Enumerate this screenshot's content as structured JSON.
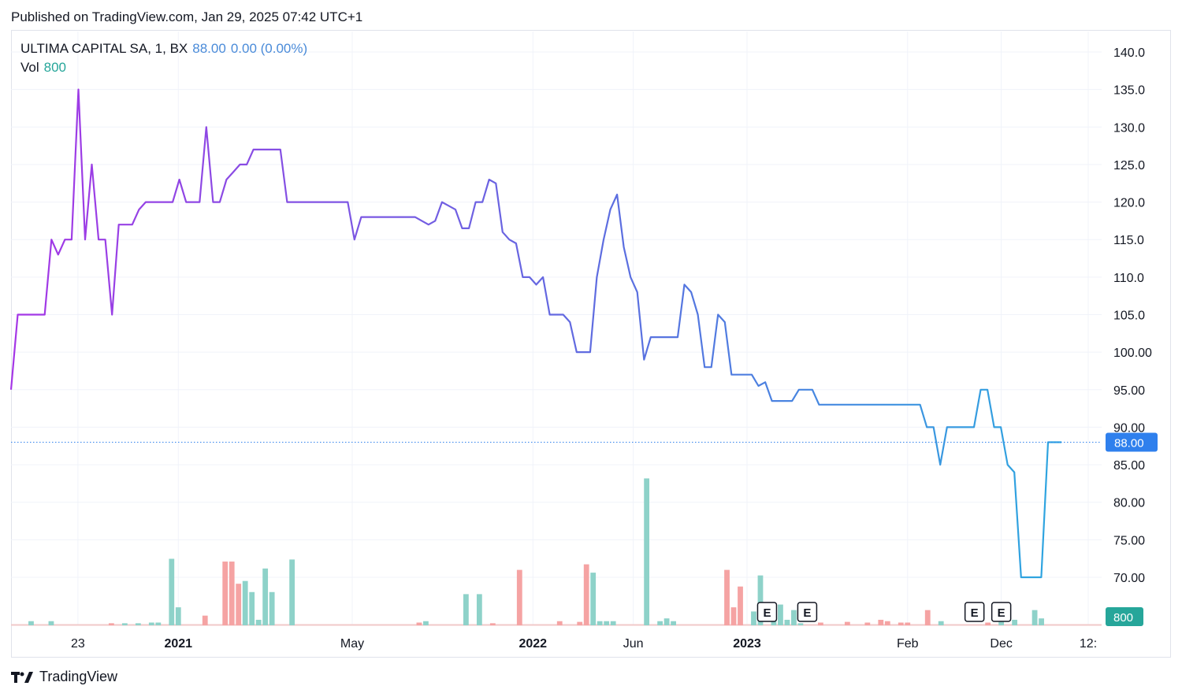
{
  "header": {
    "published": "Published on TradingView.com, Jan 29, 2025 07:42 UTC+1"
  },
  "legend": {
    "symbol": "ULTIMA CAPITAL SA, 1, BX",
    "price": "88.00",
    "change": "0.00 (0.00%)",
    "vol_label": "Vol",
    "vol_value": "800"
  },
  "brand": {
    "name": "TradingView"
  },
  "colors": {
    "line_start": "#a536e6",
    "line_mid": "#5b6fe0",
    "line_end": "#2fa4e0",
    "vol_up": "#8ed2c9",
    "vol_down": "#f5a3a3",
    "price_badge": "#2f80ed",
    "vol_badge": "#26a69a",
    "grid": "#f0f3fa"
  },
  "chart_data": {
    "type": "line",
    "title": "ULTIMA CAPITAL SA, 1, BX",
    "y_axis": {
      "ticks": [
        "140.0",
        "135.0",
        "130.0",
        "125.0",
        "120.0",
        "115.0",
        "110.0",
        "105.0",
        "100.00",
        "95.00",
        "90.00",
        "85.00",
        "80.00",
        "75.00",
        "70.00"
      ],
      "range": [
        65,
        142
      ],
      "position": "right"
    },
    "x_axis": {
      "ticks": [
        {
          "label": "23",
          "bold": false,
          "index": 10
        },
        {
          "label": "2021",
          "bold": true,
          "index": 25
        },
        {
          "label": "May",
          "bold": false,
          "index": 51
        },
        {
          "label": "2022",
          "bold": true,
          "index": 78
        },
        {
          "label": "Jun",
          "bold": false,
          "index": 93
        },
        {
          "label": "2023",
          "bold": true,
          "index": 110
        },
        {
          "label": "Feb",
          "bold": false,
          "index": 134
        },
        {
          "label": "Dec",
          "bold": false,
          "index": 148
        },
        {
          "label": "12:",
          "bold": false,
          "index": 161
        }
      ],
      "index_range": [
        0,
        163
      ]
    },
    "last_price": 88.0,
    "last_price_label": "88.00",
    "series": [
      {
        "values": [
          95,
          105,
          105,
          105,
          105,
          105,
          115,
          113,
          115,
          115,
          135,
          115,
          125,
          115,
          115,
          105,
          117,
          117,
          117,
          119,
          120,
          120,
          120,
          120,
          120,
          123,
          120,
          120,
          120,
          130,
          120,
          120,
          123,
          124,
          125,
          125,
          127,
          127,
          127,
          127,
          127,
          120,
          120,
          120,
          120,
          120,
          120,
          120,
          120,
          120,
          120,
          115,
          118,
          118,
          118,
          118,
          118,
          118,
          118,
          118,
          118,
          117.5,
          117,
          117.5,
          120,
          119.5,
          119,
          116.5,
          116.5,
          120,
          120,
          123,
          122.5,
          116,
          115,
          114.5,
          110,
          110,
          109,
          110,
          105,
          105,
          105,
          104,
          100,
          100,
          100,
          110,
          115,
          119,
          121,
          114,
          110,
          108,
          99,
          102,
          102,
          102,
          102,
          102,
          109,
          108,
          105,
          98,
          98,
          105,
          104,
          97,
          97,
          97,
          97,
          95.5,
          96,
          93.5,
          93.5,
          93.5,
          93.5,
          95,
          95,
          95,
          93,
          93,
          93,
          93,
          93,
          93,
          93,
          93,
          93,
          93,
          93,
          93,
          93,
          93,
          93,
          93,
          90,
          90,
          85,
          90,
          90,
          90,
          90,
          90,
          95,
          95,
          90,
          90,
          85,
          84,
          70,
          70,
          70,
          70,
          88,
          88,
          88
        ]
      }
    ],
    "volume": {
      "label": "Vol",
      "last": "800",
      "values": [
        2,
        2,
        2,
        5,
        2,
        2,
        5,
        2,
        2,
        2,
        2,
        2,
        2,
        2,
        2,
        3,
        2,
        3,
        3,
        3,
        3,
        3,
        3,
        3,
        75,
        20,
        2,
        2,
        2,
        10,
        2,
        2,
        2,
        70,
        70,
        47,
        50,
        27,
        9,
        47,
        40,
        3,
        75,
        2,
        2,
        2,
        2,
        2,
        2,
        2,
        2,
        2,
        2,
        2,
        2,
        2,
        2,
        2,
        2,
        2,
        2,
        2,
        3,
        3,
        2,
        2,
        2,
        2,
        2,
        2,
        2,
        2,
        33,
        2,
        2,
        2,
        2,
        2,
        2,
        2,
        2,
        2,
        2,
        2,
        2,
        60,
        2,
        2,
        2,
        2,
        2,
        2,
        2,
        2,
        2,
        2,
        2,
        3,
        3,
        2,
        2,
        9,
        2,
        2,
        2,
        62,
        48,
        2,
        2,
        4,
        5,
        5,
        2,
        2,
        2,
        2,
        2,
        80,
        2,
        2,
        2,
        2,
        2,
        2,
        2,
        2,
        2,
        2,
        2,
        2,
        2,
        2,
        2,
        3,
        2,
        2,
        2,
        2,
        2,
        2,
        2,
        2,
        2,
        2,
        2,
        2,
        2,
        2,
        2,
        2,
        2,
        2,
        2,
        3,
        2,
        2,
        2,
        3,
        2,
        2,
        2,
        2,
        6,
        5,
        2
      ],
      "direction": [
        "u",
        "u",
        "u",
        "u",
        "u",
        "u",
        "u",
        "u",
        "u",
        "u",
        "u",
        "u",
        "u",
        "u",
        "u",
        "d",
        "u",
        "u",
        "u",
        "u",
        "u",
        "u",
        "u",
        "u",
        "u",
        "u",
        "u",
        "u",
        "u",
        "d",
        "u",
        "u",
        "u",
        "d",
        "d",
        "d",
        "u",
        "u",
        "u",
        "u",
        "u",
        "u",
        "u",
        "d",
        "d",
        "d",
        "d",
        "d",
        "d",
        "d",
        "d",
        "d",
        "u",
        "u",
        "u",
        "u",
        "u",
        "u",
        "u",
        "u",
        "u",
        "d",
        "d",
        "d",
        "u",
        "u",
        "d",
        "d",
        "d",
        "u",
        "u",
        "u",
        "d",
        "d",
        "d",
        "d",
        "d",
        "d",
        "d",
        "d",
        "d",
        "d",
        "d",
        "d",
        "d",
        "d",
        "d",
        "d",
        "d",
        "d",
        "d",
        "d",
        "d",
        "d",
        "d",
        "d",
        "d",
        "d",
        "d",
        "d",
        "d",
        "d",
        "d",
        "d",
        "d",
        "d",
        "d",
        "d",
        "d",
        "d",
        "d",
        "d",
        "d",
        "d",
        "d",
        "d",
        "d",
        "d",
        "d",
        "d",
        "d",
        "d",
        "d",
        "d",
        "d",
        "d",
        "d",
        "d",
        "d",
        "d",
        "d",
        "d",
        "d",
        "d",
        "d",
        "d",
        "d",
        "d",
        "d",
        "d",
        "d",
        "d",
        "d",
        "d",
        "d",
        "d",
        "d",
        "d",
        "d",
        "d",
        "d",
        "d",
        "d",
        "d",
        "d",
        "d",
        "d",
        "d",
        "d",
        "d",
        "u",
        "u",
        "u"
      ]
    },
    "volume_bars": [
      {
        "i": 3,
        "v": 6,
        "d": "u"
      },
      {
        "i": 6,
        "v": 6,
        "d": "u"
      },
      {
        "i": 15,
        "v": 3,
        "d": "d"
      },
      {
        "i": 17,
        "v": 3,
        "d": "u"
      },
      {
        "i": 19,
        "v": 3,
        "d": "u"
      },
      {
        "i": 21,
        "v": 4,
        "d": "u"
      },
      {
        "i": 22,
        "v": 4,
        "d": "u"
      },
      {
        "i": 24,
        "v": 96,
        "d": "u"
      },
      {
        "i": 25,
        "v": 26,
        "d": "u"
      },
      {
        "i": 29,
        "v": 14,
        "d": "d"
      },
      {
        "i": 32,
        "v": 92,
        "d": "d"
      },
      {
        "i": 33,
        "v": 92,
        "d": "d"
      },
      {
        "i": 34,
        "v": 60,
        "d": "d"
      },
      {
        "i": 35,
        "v": 64,
        "d": "u"
      },
      {
        "i": 36,
        "v": 48,
        "d": "u"
      },
      {
        "i": 37,
        "v": 8,
        "d": "u"
      },
      {
        "i": 38,
        "v": 82,
        "d": "u"
      },
      {
        "i": 39,
        "v": 48,
        "d": "u"
      },
      {
        "i": 42,
        "v": 95,
        "d": "u"
      },
      {
        "i": 61,
        "v": 4,
        "d": "d"
      },
      {
        "i": 62,
        "v": 6,
        "d": "u"
      },
      {
        "i": 68,
        "v": 45,
        "d": "u"
      },
      {
        "i": 70,
        "v": 45,
        "d": "u"
      },
      {
        "i": 72,
        "v": 3,
        "d": "d"
      },
      {
        "i": 76,
        "v": 80,
        "d": "d"
      },
      {
        "i": 82,
        "v": 6,
        "d": "d"
      },
      {
        "i": 85,
        "v": 5,
        "d": "d"
      },
      {
        "i": 86,
        "v": 88,
        "d": "d"
      },
      {
        "i": 87,
        "v": 76,
        "d": "u"
      },
      {
        "i": 88,
        "v": 6,
        "d": "u"
      },
      {
        "i": 89,
        "v": 6,
        "d": "u"
      },
      {
        "i": 90,
        "v": 6,
        "d": "u"
      },
      {
        "i": 95,
        "v": 212,
        "d": "u"
      },
      {
        "i": 97,
        "v": 6,
        "d": "u"
      },
      {
        "i": 98,
        "v": 10,
        "d": "u"
      },
      {
        "i": 99,
        "v": 6,
        "d": "u"
      },
      {
        "i": 107,
        "v": 80,
        "d": "d"
      },
      {
        "i": 108,
        "v": 26,
        "d": "d"
      },
      {
        "i": 109,
        "v": 56,
        "d": "d"
      },
      {
        "i": 111,
        "v": 20,
        "d": "u"
      },
      {
        "i": 112,
        "v": 72,
        "d": "u"
      },
      {
        "i": 114,
        "v": 12,
        "d": "u"
      },
      {
        "i": 115,
        "v": 30,
        "d": "u"
      },
      {
        "i": 116,
        "v": 8,
        "d": "u"
      },
      {
        "i": 117,
        "v": 22,
        "d": "u"
      },
      {
        "i": 118,
        "v": 3,
        "d": "u"
      },
      {
        "i": 121,
        "v": 4,
        "d": "d"
      },
      {
        "i": 125,
        "v": 5,
        "d": "d"
      },
      {
        "i": 128,
        "v": 4,
        "d": "d"
      },
      {
        "i": 130,
        "v": 8,
        "d": "d"
      },
      {
        "i": 131,
        "v": 6,
        "d": "d"
      },
      {
        "i": 133,
        "v": 4,
        "d": "d"
      },
      {
        "i": 134,
        "v": 4,
        "d": "d"
      },
      {
        "i": 137,
        "v": 22,
        "d": "d"
      },
      {
        "i": 139,
        "v": 6,
        "d": "u"
      },
      {
        "i": 146,
        "v": 4,
        "d": "d"
      },
      {
        "i": 148,
        "v": 5,
        "d": "u"
      },
      {
        "i": 150,
        "v": 8,
        "d": "u"
      },
      {
        "i": 153,
        "v": 22,
        "d": "u"
      },
      {
        "i": 154,
        "v": 10,
        "d": "u"
      }
    ],
    "earnings_markers": [
      {
        "label": "E",
        "index": 113
      },
      {
        "label": "E",
        "index": 119
      },
      {
        "label": "E",
        "index": 144
      },
      {
        "label": "E",
        "index": 148
      }
    ],
    "grid": true,
    "legend_position": "top-left"
  }
}
